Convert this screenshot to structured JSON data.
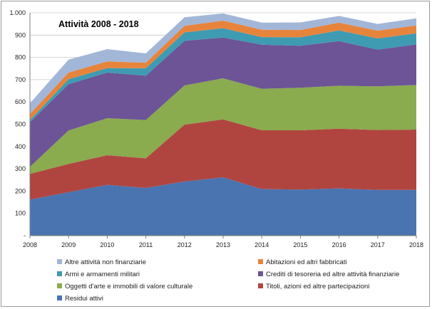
{
  "chart_data": {
    "type": "area",
    "stacked": true,
    "title": "Attività 2008 - 2018",
    "x": [
      "2008",
      "2009",
      "2010",
      "2011",
      "2012",
      "2013",
      "2014",
      "2015",
      "2016",
      "2017",
      "2018"
    ],
    "ylim": [
      0,
      1000
    ],
    "y_ticks": [
      "-",
      "100",
      "200",
      "300",
      "400",
      "500",
      "600",
      "700",
      "800",
      "900",
      "1.000"
    ],
    "y_tick_values": [
      0,
      100,
      200,
      300,
      400,
      500,
      600,
      700,
      800,
      900,
      1000
    ],
    "grid": true,
    "legend_position": "bottom",
    "series": [
      {
        "name": "Residui attivi",
        "color": "#4a74b0",
        "values": [
          162,
          195,
          228,
          214,
          243,
          262,
          209,
          207,
          212,
          205,
          205
        ]
      },
      {
        "name": "Titoli, azioni ed altre partecipazioni",
        "color": "#b04540",
        "values": [
          115,
          127,
          133,
          133,
          255,
          260,
          264,
          266,
          268,
          269,
          271
        ]
      },
      {
        "name": "Oggetti d'arte e immobili di valore culturale",
        "color": "#8aab4e",
        "values": [
          32,
          150,
          166,
          172,
          176,
          184,
          186,
          191,
          193,
          196,
          200
        ]
      },
      {
        "name": "Crediti di tesoreria ed altre attività finanziarie",
        "color": "#6c5496",
        "values": [
          200,
          208,
          205,
          199,
          200,
          183,
          198,
          188,
          200,
          165,
          182
        ]
      },
      {
        "name": "Armi e armamenti militari",
        "color": "#3e9bb2",
        "values": [
          10,
          22,
          20,
          33,
          38,
          42,
          34,
          38,
          48,
          50,
          50
        ]
      },
      {
        "name": "Abitazioni ed altri fabbricati",
        "color": "#e7843c",
        "values": [
          27,
          30,
          30,
          25,
          30,
          34,
          33,
          33,
          35,
          35,
          35
        ]
      },
      {
        "name": "Altre attività non finanziarie",
        "color": "#a2b6d8",
        "values": [
          48,
          58,
          55,
          42,
          38,
          32,
          32,
          34,
          30,
          30,
          32
        ]
      }
    ],
    "legend_order": [
      "Altre attività non finanziarie",
      "Abitazioni ed altri fabbricati",
      "Armi e armamenti militari",
      "Crediti di tesoreria ed altre attività finanziarie",
      "Oggetti d'arte e immobili di valore culturale",
      "Titoli, azioni ed altre partecipazioni",
      "Residui attivi"
    ]
  }
}
